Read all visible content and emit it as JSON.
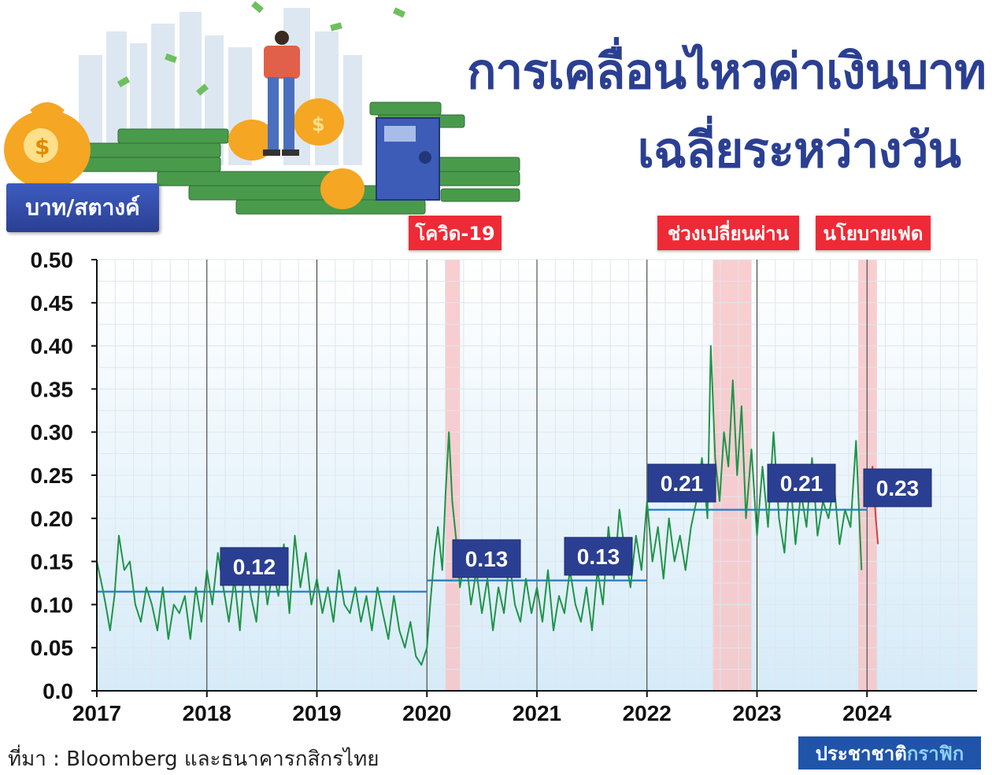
{
  "header": {
    "title_line1": "การเคลื่อนไหวค่าเงินบาท",
    "title_line2": "เฉลี่ยระหว่างวัน",
    "unit_badge": "บาท/สตางค์"
  },
  "events": [
    {
      "label": "โควิด-19",
      "start": 2020.17,
      "end": 2020.3
    },
    {
      "label": "ช่วงเปลี่ยนผ่าน",
      "start": 2022.6,
      "end": 2022.95
    },
    {
      "label": "นโยบายเฟด",
      "start": 2023.92,
      "end": 2024.09
    }
  ],
  "footer": {
    "source": "ที่มา : Bloomberg และธนาคารกสิกรไทย",
    "brand_a": "ประชาชาติ",
    "brand_b": "กราฟิก"
  },
  "colors": {
    "title": "#2b3f92",
    "series_line": "#1e9448",
    "series_line_recent": "#e53935",
    "average_line": "#2f86c9",
    "event_shade": "#f7c6c8",
    "event_tag": "#ee2a36",
    "badge": "#2b3f92"
  },
  "chart_data": {
    "type": "line",
    "title": "การเคลื่อนไหวค่าเงินบาทเฉลี่ยระหว่างวัน",
    "ylabel": "บาท/สตางค์",
    "xlim": [
      2017,
      2025
    ],
    "ylim": [
      0,
      0.5
    ],
    "x_ticks": [
      "2017",
      "2018",
      "2019",
      "2020",
      "2021",
      "2022",
      "2023",
      "2024"
    ],
    "y_ticks": [
      "0.0",
      "0.05",
      "0.10",
      "0.15",
      "0.20",
      "0.25",
      "0.30",
      "0.35",
      "0.40",
      "0.45",
      "0.50"
    ],
    "grid": true,
    "series": [
      {
        "type": "line",
        "points": [
          [
            2017.0,
            0.15
          ],
          [
            2017.05,
            0.12
          ],
          [
            2017.08,
            0.1
          ],
          [
            2017.12,
            0.07
          ],
          [
            2017.16,
            0.11
          ],
          [
            2017.2,
            0.18
          ],
          [
            2017.25,
            0.14
          ],
          [
            2017.3,
            0.15
          ],
          [
            2017.35,
            0.1
          ],
          [
            2017.4,
            0.08
          ],
          [
            2017.45,
            0.12
          ],
          [
            2017.5,
            0.1
          ],
          [
            2017.55,
            0.07
          ],
          [
            2017.6,
            0.12
          ],
          [
            2017.65,
            0.06
          ],
          [
            2017.7,
            0.1
          ],
          [
            2017.75,
            0.09
          ],
          [
            2017.8,
            0.11
          ],
          [
            2017.85,
            0.06
          ],
          [
            2017.9,
            0.12
          ],
          [
            2017.95,
            0.08
          ],
          [
            2018.0,
            0.14
          ],
          [
            2018.05,
            0.1
          ],
          [
            2018.1,
            0.16
          ],
          [
            2018.15,
            0.12
          ],
          [
            2018.2,
            0.08
          ],
          [
            2018.25,
            0.13
          ],
          [
            2018.3,
            0.07
          ],
          [
            2018.35,
            0.16
          ],
          [
            2018.4,
            0.11
          ],
          [
            2018.45,
            0.08
          ],
          [
            2018.5,
            0.16
          ],
          [
            2018.55,
            0.1
          ],
          [
            2018.6,
            0.14
          ],
          [
            2018.65,
            0.11
          ],
          [
            2018.7,
            0.17
          ],
          [
            2018.75,
            0.09
          ],
          [
            2018.8,
            0.18
          ],
          [
            2018.85,
            0.12
          ],
          [
            2018.9,
            0.16
          ],
          [
            2018.95,
            0.1
          ],
          [
            2019.0,
            0.13
          ],
          [
            2019.05,
            0.09
          ],
          [
            2019.1,
            0.12
          ],
          [
            2019.15,
            0.08
          ],
          [
            2019.2,
            0.14
          ],
          [
            2019.25,
            0.1
          ],
          [
            2019.3,
            0.09
          ],
          [
            2019.35,
            0.12
          ],
          [
            2019.4,
            0.08
          ],
          [
            2019.45,
            0.11
          ],
          [
            2019.5,
            0.07
          ],
          [
            2019.55,
            0.12
          ],
          [
            2019.6,
            0.09
          ],
          [
            2019.65,
            0.06
          ],
          [
            2019.7,
            0.11
          ],
          [
            2019.75,
            0.07
          ],
          [
            2019.8,
            0.05
          ],
          [
            2019.85,
            0.08
          ],
          [
            2019.9,
            0.04
          ],
          [
            2019.95,
            0.03
          ],
          [
            2020.0,
            0.05
          ],
          [
            2020.03,
            0.1
          ],
          [
            2020.07,
            0.16
          ],
          [
            2020.1,
            0.19
          ],
          [
            2020.14,
            0.14
          ],
          [
            2020.17,
            0.23
          ],
          [
            2020.2,
            0.3
          ],
          [
            2020.23,
            0.22
          ],
          [
            2020.27,
            0.17
          ],
          [
            2020.3,
            0.12
          ],
          [
            2020.35,
            0.16
          ],
          [
            2020.4,
            0.1
          ],
          [
            2020.45,
            0.14
          ],
          [
            2020.5,
            0.09
          ],
          [
            2020.55,
            0.13
          ],
          [
            2020.6,
            0.07
          ],
          [
            2020.65,
            0.12
          ],
          [
            2020.7,
            0.09
          ],
          [
            2020.75,
            0.15
          ],
          [
            2020.8,
            0.1
          ],
          [
            2020.85,
            0.08
          ],
          [
            2020.9,
            0.13
          ],
          [
            2020.95,
            0.09
          ],
          [
            2021.0,
            0.12
          ],
          [
            2021.05,
            0.08
          ],
          [
            2021.1,
            0.14
          ],
          [
            2021.15,
            0.07
          ],
          [
            2021.2,
            0.11
          ],
          [
            2021.25,
            0.09
          ],
          [
            2021.3,
            0.14
          ],
          [
            2021.35,
            0.1
          ],
          [
            2021.4,
            0.08
          ],
          [
            2021.45,
            0.12
          ],
          [
            2021.5,
            0.07
          ],
          [
            2021.55,
            0.14
          ],
          [
            2021.6,
            0.1
          ],
          [
            2021.65,
            0.19
          ],
          [
            2021.7,
            0.13
          ],
          [
            2021.75,
            0.21
          ],
          [
            2021.8,
            0.16
          ],
          [
            2021.85,
            0.12
          ],
          [
            2021.9,
            0.18
          ],
          [
            2021.95,
            0.14
          ],
          [
            2022.0,
            0.22
          ],
          [
            2022.05,
            0.15
          ],
          [
            2022.1,
            0.19
          ],
          [
            2022.15,
            0.13
          ],
          [
            2022.2,
            0.2
          ],
          [
            2022.25,
            0.15
          ],
          [
            2022.3,
            0.18
          ],
          [
            2022.35,
            0.14
          ],
          [
            2022.4,
            0.19
          ],
          [
            2022.45,
            0.22
          ],
          [
            2022.5,
            0.27
          ],
          [
            2022.55,
            0.2
          ],
          [
            2022.58,
            0.4
          ],
          [
            2022.62,
            0.27
          ],
          [
            2022.66,
            0.22
          ],
          [
            2022.7,
            0.3
          ],
          [
            2022.74,
            0.26
          ],
          [
            2022.78,
            0.36
          ],
          [
            2022.82,
            0.25
          ],
          [
            2022.86,
            0.33
          ],
          [
            2022.9,
            0.2
          ],
          [
            2022.95,
            0.28
          ],
          [
            2023.0,
            0.18
          ],
          [
            2023.05,
            0.26
          ],
          [
            2023.1,
            0.19
          ],
          [
            2023.15,
            0.3
          ],
          [
            2023.2,
            0.2
          ],
          [
            2023.25,
            0.16
          ],
          [
            2023.3,
            0.25
          ],
          [
            2023.35,
            0.17
          ],
          [
            2023.4,
            0.23
          ],
          [
            2023.45,
            0.19
          ],
          [
            2023.5,
            0.27
          ],
          [
            2023.55,
            0.18
          ],
          [
            2023.6,
            0.22
          ],
          [
            2023.65,
            0.2
          ],
          [
            2023.7,
            0.24
          ],
          [
            2023.75,
            0.17
          ],
          [
            2023.8,
            0.21
          ],
          [
            2023.85,
            0.19
          ],
          [
            2023.9,
            0.29
          ],
          [
            2023.95,
            0.14
          ]
        ]
      },
      {
        "type": "line",
        "points": [
          [
            2024.02,
            0.23
          ],
          [
            2024.05,
            0.26
          ],
          [
            2024.08,
            0.2
          ],
          [
            2024.1,
            0.17
          ]
        ]
      }
    ],
    "averages": [
      {
        "label": "0.12",
        "value": 0.115,
        "x_start": 2017.0,
        "x_end": 2020.0
      },
      {
        "label": "0.13",
        "value": 0.128,
        "x_start": 2020.0,
        "x_end": 2021.0
      },
      {
        "label": "0.13",
        "value": 0.128,
        "x_start": 2021.0,
        "x_end": 2022.0
      },
      {
        "label": "0.21",
        "value": 0.21,
        "x_start": 2022.0,
        "x_end": 2023.0
      },
      {
        "label": "0.21",
        "value": 0.21,
        "x_start": 2023.0,
        "x_end": 2024.0
      },
      {
        "label": "0.23",
        "value": 0.23,
        "x_start": 2024.0,
        "x_end": 2024.1
      }
    ]
  }
}
